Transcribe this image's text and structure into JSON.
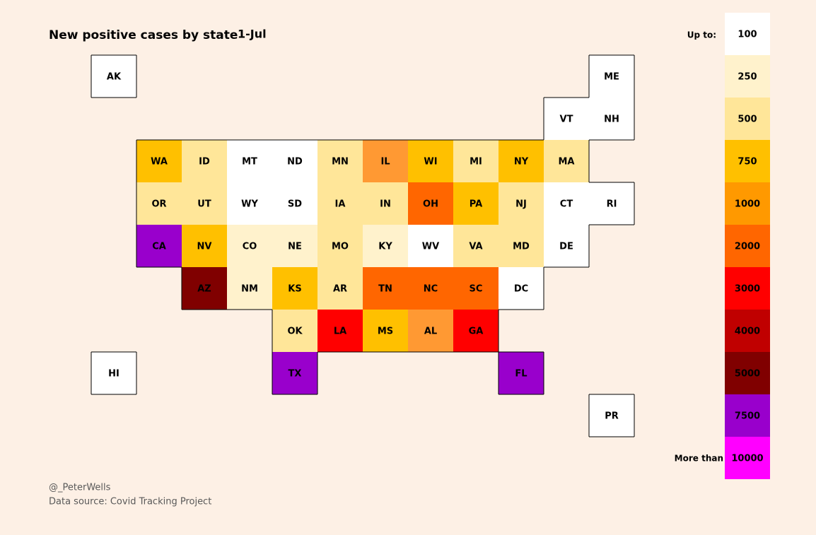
{
  "title": "New positive cases by state",
  "date": "1-Jul",
  "tiles": [
    {
      "label": "AK",
      "color": "#ffffff"
    },
    {
      "label": "ME",
      "color": "#ffffff"
    },
    {
      "label": "VT",
      "color": "#ffffff"
    },
    {
      "label": "NH",
      "color": "#ffffff"
    },
    {
      "label": "WA",
      "color": "#ffc000"
    },
    {
      "label": "ID",
      "color": "#ffe699"
    },
    {
      "label": "MT",
      "color": "#ffffff"
    },
    {
      "label": "ND",
      "color": "#ffffff"
    },
    {
      "label": "MN",
      "color": "#ffe699"
    },
    {
      "label": "IL",
      "color": "#ff9933"
    },
    {
      "label": "WI",
      "color": "#ffc000"
    },
    {
      "label": "MI",
      "color": "#ffe699"
    },
    {
      "label": "NY",
      "color": "#ffc000"
    },
    {
      "label": "MA",
      "color": "#ffe699"
    },
    {
      "label": "OR",
      "color": "#ffe699"
    },
    {
      "label": "UT",
      "color": "#ffe699"
    },
    {
      "label": "WY",
      "color": "#ffffff"
    },
    {
      "label": "SD",
      "color": "#ffffff"
    },
    {
      "label": "IA",
      "color": "#ffe699"
    },
    {
      "label": "IN",
      "color": "#ffe699"
    },
    {
      "label": "OH",
      "color": "#ff6600"
    },
    {
      "label": "PA",
      "color": "#ffc000"
    },
    {
      "label": "NJ",
      "color": "#ffe699"
    },
    {
      "label": "CT",
      "color": "#ffffff"
    },
    {
      "label": "RI",
      "color": "#ffffff"
    },
    {
      "label": "CA",
      "color": "#9900cc"
    },
    {
      "label": "NV",
      "color": "#ffc000"
    },
    {
      "label": "CO",
      "color": "#fff2cc"
    },
    {
      "label": "NE",
      "color": "#fff2cc"
    },
    {
      "label": "MO",
      "color": "#ffe699"
    },
    {
      "label": "KY",
      "color": "#fff2cc"
    },
    {
      "label": "WV",
      "color": "#ffffff"
    },
    {
      "label": "VA",
      "color": "#ffe699"
    },
    {
      "label": "MD",
      "color": "#ffe699"
    },
    {
      "label": "DE",
      "color": "#ffffff"
    },
    {
      "label": "AZ",
      "color": "#800000"
    },
    {
      "label": "NM",
      "color": "#fff2cc"
    },
    {
      "label": "KS",
      "color": "#ffc000"
    },
    {
      "label": "AR",
      "color": "#ffe699"
    },
    {
      "label": "TN",
      "color": "#ff6600"
    },
    {
      "label": "NC",
      "color": "#ff6600"
    },
    {
      "label": "SC",
      "color": "#ff6600"
    },
    {
      "label": "DC",
      "color": "#ffffff"
    },
    {
      "label": "OK",
      "color": "#ffe699"
    },
    {
      "label": "LA",
      "color": "#ff0000"
    },
    {
      "label": "MS",
      "color": "#ffc000"
    },
    {
      "label": "AL",
      "color": "#ff9933"
    },
    {
      "label": "GA",
      "color": "#ff0000"
    },
    {
      "label": "HI",
      "color": "#ffffff"
    },
    {
      "label": "TX",
      "color": "#9900cc"
    },
    {
      "label": "FL",
      "color": "#9900cc"
    },
    {
      "label": "PR",
      "color": "#ffffff"
    }
  ],
  "legend": {
    "header": "Up to:",
    "last_prefix": "More than",
    "bins": [
      {
        "value": 100,
        "color": "#ffffff"
      },
      {
        "value": 250,
        "color": "#fff2cc"
      },
      {
        "value": 500,
        "color": "#ffe699"
      },
      {
        "value": 750,
        "color": "#ffc000"
      },
      {
        "value": 1000,
        "color": "#ff9900"
      },
      {
        "value": 2000,
        "color": "#ff6600"
      },
      {
        "value": 3000,
        "color": "#ff0000"
      },
      {
        "value": 4000,
        "color": "#c00000"
      },
      {
        "value": 5000,
        "color": "#800000"
      },
      {
        "value": 7500,
        "color": "#9900cc"
      },
      {
        "value": 10000,
        "color": "#ff00ff"
      }
    ]
  },
  "credits": {
    "author": "@_PeterWells",
    "source": "Data source: Covid Tracking Project"
  }
}
